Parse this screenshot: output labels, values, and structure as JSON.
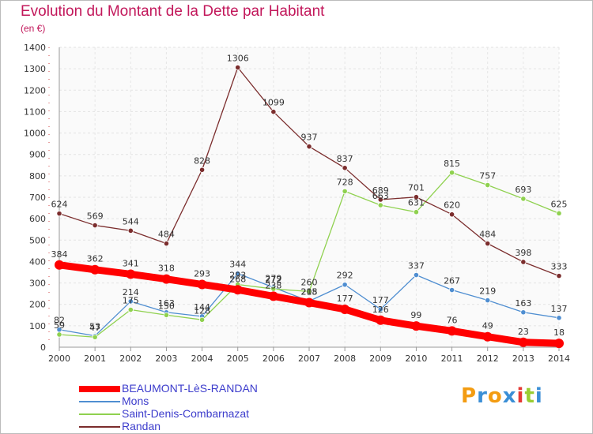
{
  "title": "Evolution du Montant de la Dette par Habitant",
  "subtitle": "(en €)",
  "brand": {
    "text": "Proxiti",
    "colors": [
      "#f39c12",
      "#3b8fd6",
      "#f39c12",
      "#3b8fd6",
      "#e53935",
      "#9acd32",
      "#3b8fd6"
    ]
  },
  "chart_data": {
    "type": "line",
    "x": [
      "2000",
      "2001",
      "2002",
      "2003",
      "2004",
      "2005",
      "2006",
      "2007",
      "2008",
      "2009",
      "2010",
      "2011",
      "2012",
      "2013",
      "2014"
    ],
    "ylim": [
      0,
      1400
    ],
    "yticks": [
      0,
      100,
      200,
      300,
      400,
      500,
      600,
      700,
      800,
      900,
      1000,
      1100,
      1200,
      1300,
      1400
    ],
    "grid": true,
    "legend_position": "bottom-left",
    "series": [
      {
        "name": "BEAUMONT-LèS-RANDAN",
        "color": "#ff0000",
        "emphasis": true,
        "values": [
          384,
          362,
          341,
          318,
          293,
          268,
          238,
          208,
          177,
          126,
          99,
          76,
          49,
          23,
          18
        ]
      },
      {
        "name": "Mons",
        "color": "#4f8ed1",
        "values": [
          82,
          53,
          214,
          163,
          144,
          344,
          279,
          215,
          292,
          177,
          337,
          267,
          219,
          163,
          137
        ]
      },
      {
        "name": "Saint-Denis-Combarnazat",
        "color": "#8fd14f",
        "values": [
          59,
          47,
          175,
          150,
          128,
          293,
          272,
          260,
          728,
          663,
          631,
          815,
          757,
          693,
          625
        ]
      },
      {
        "name": "Randan",
        "color": "#7b2d2d",
        "values": [
          624,
          569,
          544,
          484,
          828,
          1306,
          1099,
          937,
          837,
          689,
          701,
          620,
          484,
          398,
          333
        ]
      }
    ]
  }
}
